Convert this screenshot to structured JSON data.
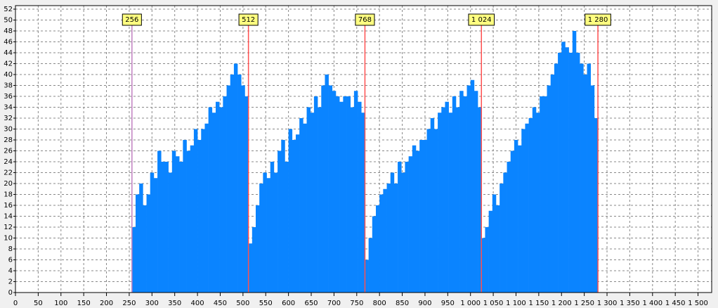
{
  "chart_data": {
    "type": "histogram",
    "bins": [
      256,
      264,
      272,
      280,
      288,
      296,
      304,
      312,
      320,
      328,
      336,
      344,
      352,
      360,
      368,
      376,
      384,
      392,
      400,
      408,
      416,
      424,
      432,
      440,
      448,
      456,
      464,
      472,
      480,
      488,
      496,
      504,
      512,
      520,
      528,
      536,
      544,
      552,
      560,
      568,
      576,
      584,
      592,
      600,
      608,
      616,
      624,
      632,
      640,
      648,
      656,
      664,
      672,
      680,
      688,
      696,
      704,
      712,
      720,
      728,
      736,
      744,
      752,
      760,
      768,
      776,
      784,
      792,
      800,
      808,
      816,
      824,
      832,
      840,
      848,
      856,
      864,
      872,
      880,
      888,
      896,
      904,
      912,
      920,
      928,
      936,
      944,
      952,
      960,
      968,
      976,
      984,
      992,
      1000,
      1008,
      1016,
      1024,
      1032,
      1040,
      1048,
      1056,
      1064,
      1072,
      1080,
      1088,
      1096,
      1104,
      1112,
      1120,
      1128,
      1136,
      1144,
      1152,
      1160,
      1168,
      1176,
      1184,
      1192,
      1200,
      1208,
      1216,
      1224,
      1232,
      1240,
      1248,
      1256,
      1264,
      1272,
      1280
    ],
    "values": [
      12,
      18,
      20,
      16,
      18,
      22,
      21,
      26,
      24,
      24,
      22,
      26,
      25,
      24,
      28,
      26,
      27,
      30,
      28,
      30,
      31,
      34,
      33,
      35,
      34,
      36,
      38,
      40,
      42,
      40,
      38,
      36,
      9,
      12,
      16,
      20,
      22,
      21,
      24,
      22,
      26,
      28,
      24,
      30,
      28,
      29,
      32,
      31,
      34,
      33,
      36,
      34,
      38,
      40,
      38,
      37,
      36,
      35,
      36,
      36,
      34,
      37,
      35,
      33,
      6,
      10,
      14,
      16,
      18,
      19,
      20,
      22,
      20,
      24,
      22,
      24,
      25,
      27,
      26,
      28,
      28,
      30,
      32,
      30,
      33,
      34,
      35,
      33,
      36,
      34,
      37,
      36,
      38,
      39,
      37,
      34,
      10,
      12,
      15,
      18,
      16,
      20,
      22,
      24,
      26,
      28,
      27,
      30,
      31,
      32,
      34,
      33,
      36,
      36,
      38,
      40,
      42,
      44,
      46,
      45,
      44,
      48,
      44,
      42,
      40,
      42,
      38,
      32
    ],
    "color": "#0a84ff",
    "markers": [
      {
        "value": 256,
        "label": "256",
        "color": "#c080c0"
      },
      {
        "value": 512,
        "label": "512",
        "color": "#ff5050"
      },
      {
        "value": 768,
        "label": "768",
        "color": "#ff5050"
      },
      {
        "value": 1024,
        "label": "1 024",
        "color": "#ff5050"
      },
      {
        "value": 1280,
        "label": "1 280",
        "color": "#ff5050"
      }
    ],
    "xlim": [
      0,
      1530
    ],
    "ylim": [
      0,
      52
    ],
    "xticks": [
      0,
      50,
      100,
      150,
      200,
      250,
      300,
      350,
      400,
      450,
      500,
      550,
      600,
      650,
      700,
      750,
      800,
      850,
      900,
      950,
      {
        "value": 1000,
        "label": "1 000"
      },
      {
        "value": 1050,
        "label": "1 050"
      },
      {
        "value": 1100,
        "label": "1 100"
      },
      {
        "value": 1150,
        "label": "1 150"
      },
      {
        "value": 1200,
        "label": "1 200"
      },
      {
        "value": 1250,
        "label": "1 250"
      },
      {
        "value": 1300,
        "label": "1 300"
      },
      {
        "value": 1350,
        "label": "1 350"
      },
      {
        "value": 1400,
        "label": "1 400"
      },
      {
        "value": 1450,
        "label": "1 450"
      },
      {
        "value": 1500,
        "label": "1 500"
      }
    ],
    "yticks": [
      0,
      2,
      4,
      6,
      8,
      10,
      12,
      14,
      16,
      18,
      20,
      22,
      24,
      26,
      28,
      30,
      32,
      34,
      36,
      38,
      40,
      42,
      44,
      46,
      48,
      50,
      52
    ],
    "grid": true
  }
}
